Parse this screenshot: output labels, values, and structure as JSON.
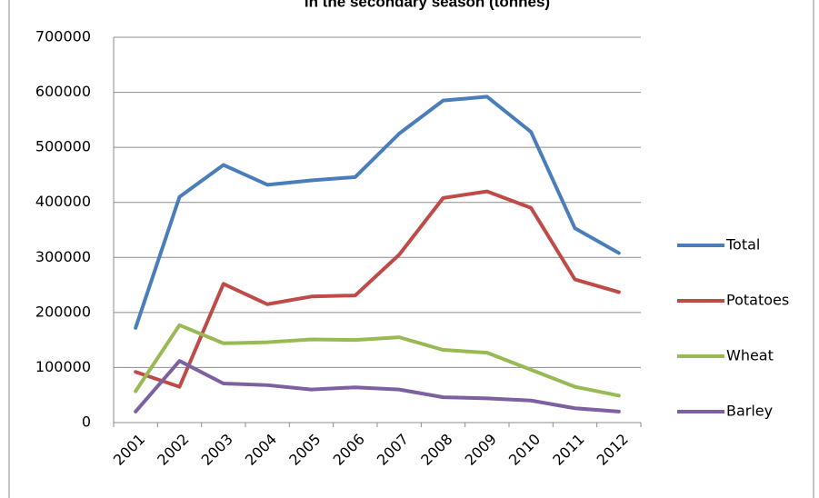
{
  "chart_data": {
    "type": "line",
    "title": "in the secondary season (tonnes)",
    "categories": [
      "2001",
      "2002",
      "2003",
      "2004",
      "2005",
      "2006",
      "2007",
      "2008",
      "2009",
      "2010",
      "2011",
      "2012"
    ],
    "series": [
      {
        "name": "Total",
        "color": "#4a7ebb",
        "values": [
          172000,
          410000,
          468000,
          432000,
          440000,
          446000,
          525000,
          585000,
          592000,
          528000,
          353000,
          308000
        ]
      },
      {
        "name": "Potatoes",
        "color": "#be4b48",
        "values": [
          92000,
          65000,
          252000,
          215000,
          229000,
          231000,
          305000,
          408000,
          420000,
          390000,
          260000,
          237000
        ]
      },
      {
        "name": "Wheat",
        "color": "#98b954",
        "values": [
          57000,
          177000,
          144000,
          146000,
          151000,
          150000,
          155000,
          132000,
          127000,
          96000,
          65000,
          49000
        ]
      },
      {
        "name": "Barley",
        "color": "#7d60a0",
        "values": [
          20000,
          112000,
          71000,
          68000,
          60000,
          64000,
          60000,
          46000,
          44000,
          40000,
          26000,
          20000
        ]
      }
    ],
    "ylim": [
      0,
      700000
    ],
    "yticks": [
      0,
      100000,
      200000,
      300000,
      400000,
      500000,
      600000,
      700000
    ],
    "grid": true,
    "legend": "right"
  }
}
